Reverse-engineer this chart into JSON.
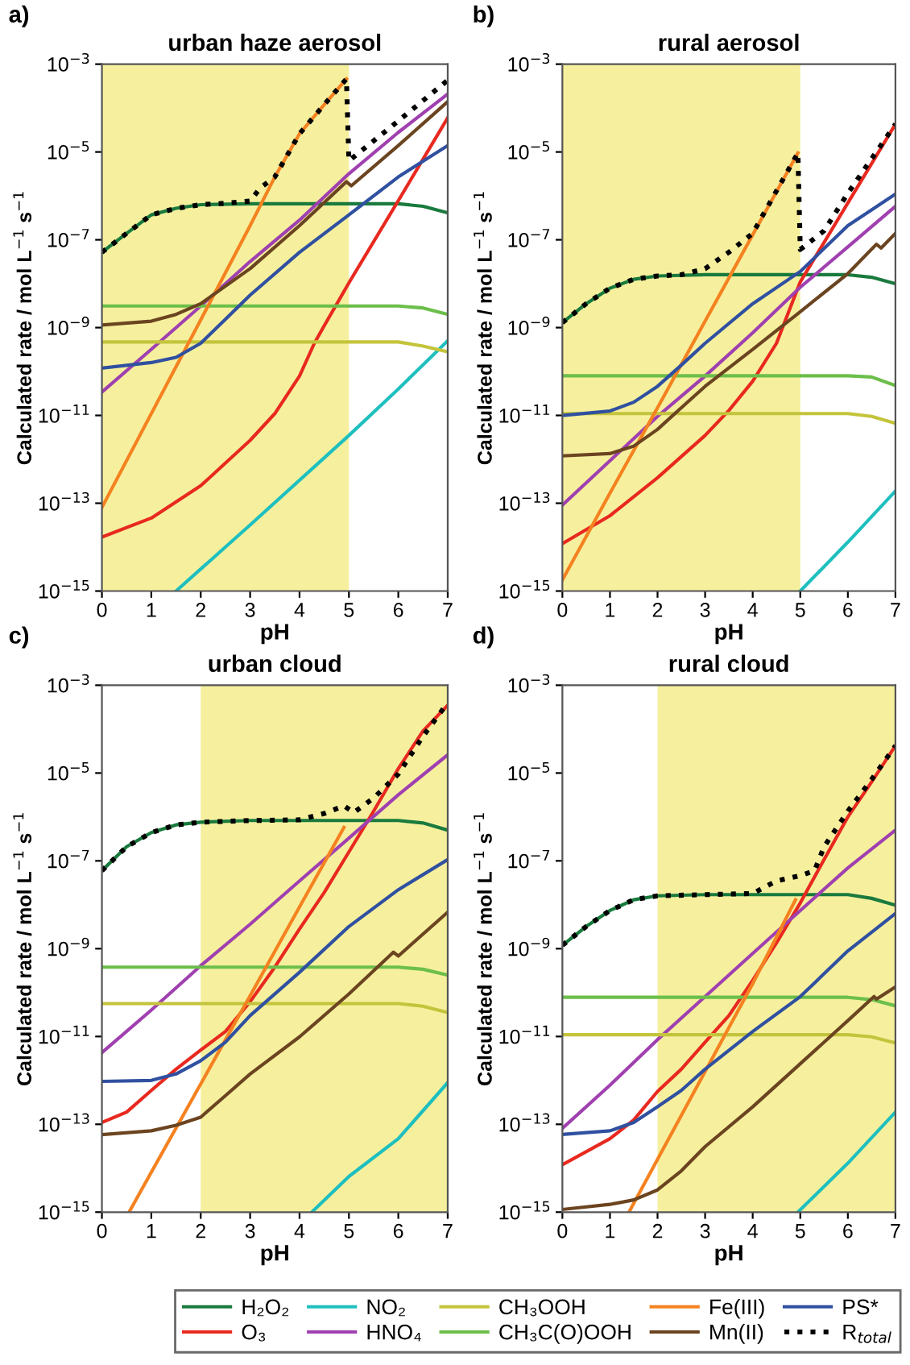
{
  "chart_data": [
    {
      "type": "line",
      "title": "urban haze aerosol",
      "xlabel": "pH",
      "ylabel": "Calculated rate / mol L$^{−1}$ s$^{−1}$",
      "annotations": [
        "a)"
      ],
      "log": "y",
      "legend": "bottom",
      "xlim": [
        0,
        7
      ],
      "xticks": [
        0,
        1,
        2,
        3,
        4,
        5,
        6,
        7
      ],
      "ylim": [
        1e-15,
        0.001
      ],
      "yticks": [
        {
          "value": 1e-15,
          "label": "10$^{−15}$"
        },
        {
          "value": 1e-13,
          "label": "10$^{−13}$"
        },
        {
          "value": 1e-11,
          "label": "10$^{−11}$"
        },
        {
          "value": 1e-09,
          "label": "10$^{−9}$"
        },
        {
          "value": 1e-07,
          "label": "10$^{−7}$"
        },
        {
          "value": 1e-05,
          "label": "10$^{−5}$"
        },
        {
          "value": 0.001,
          "label": "10$^{−3}$"
        }
      ],
      "bands": [
        {
          "axis": "x",
          "from": 0,
          "to": 5,
          "color": "#f6f09e"
        }
      ],
      "series": [
        {
          "name": "H₂O₂",
          "color": "#1a7a3e",
          "x": [
            0,
            0.5,
            1,
            1.5,
            2,
            3,
            4,
            5,
            6,
            6.5,
            7
          ],
          "values": [
            5.2e-08,
            1.4e-07,
            3.7e-07,
            5.2e-07,
            6.3e-07,
            6.6e-07,
            6.6e-07,
            6.6e-07,
            6.6e-07,
            5.8e-07,
            4.1e-07
          ]
        },
        {
          "name": "O₃",
          "color": "#e8291f",
          "x": [
            0,
            1,
            2,
            3,
            3.5,
            4,
            4.3,
            4.5,
            5,
            6,
            7
          ],
          "values": [
            1.7e-14,
            4.6e-14,
            2.5e-13,
            2.7e-12,
            1.1e-11,
            7.9e-11,
            4.4e-10,
            1.1e-09,
            1.05e-08,
            7.8e-07,
            6e-05
          ]
        },
        {
          "name": "NO₂",
          "color": "#1fbfbf",
          "x": [
            1.5,
            3,
            5,
            6,
            7
          ],
          "values": [
            1e-15,
            3.2e-14,
            3.5e-12,
            4e-11,
            5e-10
          ]
        },
        {
          "name": "HNO₄",
          "color": "#a040b0",
          "x": [
            0,
            1,
            2,
            3,
            4,
            5,
            6,
            7
          ],
          "values": [
            3.4e-11,
            3.2e-10,
            3.1e-09,
            3.2e-08,
            2.8e-07,
            3.2e-06,
            2.8e-05,
            0.00021
          ]
        },
        {
          "name": "CH₃OOH",
          "color": "#c4c43c",
          "x": [
            0,
            2,
            4,
            6,
            6.5,
            7
          ],
          "values": [
            4.7e-10,
            4.7e-10,
            4.7e-10,
            4.7e-10,
            3.8e-10,
            2.8e-10
          ]
        },
        {
          "name": "CH₃C(O)OOH",
          "color": "#6cbf4a",
          "x": [
            0,
            2,
            4,
            6,
            6.5,
            7
          ],
          "values": [
            3.1e-09,
            3.1e-09,
            3.1e-09,
            3.1e-09,
            2.8e-09,
            2e-09
          ]
        },
        {
          "name": "Fe(III)",
          "color": "#f58220",
          "x": [
            0,
            1,
            2,
            3,
            3.5,
            4,
            4.5,
            4.95
          ],
          "values": [
            8e-14,
            1.1e-11,
            1.5e-09,
            2.1e-07,
            2.7e-06,
            2.6e-05,
            0.00012,
            0.00046
          ]
        },
        {
          "name": "Mn(II)",
          "color": "#6b4420",
          "x": [
            0,
            1,
            1.5,
            2,
            3,
            4,
            4.95,
            5.05,
            6,
            7
          ],
          "values": [
            1.15e-09,
            1.4e-09,
            2e-09,
            3.5e-09,
            2.2e-08,
            2.1e-07,
            2.1e-06,
            1.7e-06,
            1.4e-05,
            0.00014
          ]
        },
        {
          "name": "PS*",
          "color": "#3050a0",
          "x": [
            0,
            1,
            1.5,
            2,
            2.5,
            3,
            4,
            5,
            6,
            7
          ],
          "values": [
            1.2e-10,
            1.6e-10,
            2.1e-10,
            4.4e-10,
            1.55e-09,
            5.5e-09,
            5.2e-08,
            3.7e-07,
            2.7e-06,
            1.4e-05
          ]
        },
        {
          "name": "R$_{total}$",
          "color": "#000000",
          "line_style": "dotted",
          "x": [
            0,
            0.5,
            1,
            1.5,
            2,
            2.5,
            3,
            3.2,
            3.5,
            4,
            4.5,
            4.95,
            5,
            6,
            7
          ],
          "values": [
            5.2e-08,
            1.4e-07,
            3.7e-07,
            5.2e-07,
            6.3e-07,
            6.8e-07,
            7.6e-07,
            1.5e-06,
            2.7e-06,
            2.6e-05,
            0.00012,
            0.00046,
            6.3e-06,
            5.1e-05,
            0.00043
          ]
        }
      ]
    },
    {
      "type": "line",
      "title": "rural aerosol",
      "xlabel": "pH",
      "ylabel": "Calculated rate / mol L$^{−1}$ s$^{−1}$",
      "annotations": [
        "b)"
      ],
      "log": "y",
      "xlim": [
        0,
        7
      ],
      "xticks": [
        0,
        1,
        2,
        3,
        4,
        5,
        6,
        7
      ],
      "ylim": [
        1e-15,
        0.001
      ],
      "yticks": [
        {
          "value": 1e-15,
          "label": "10$^{−15}$"
        },
        {
          "value": 1e-13,
          "label": "10$^{−13}$"
        },
        {
          "value": 1e-11,
          "label": "10$^{−11}$"
        },
        {
          "value": 1e-09,
          "label": "10$^{−9}$"
        },
        {
          "value": 1e-07,
          "label": "10$^{−7}$"
        },
        {
          "value": 1e-05,
          "label": "10$^{−5}$"
        },
        {
          "value": 0.001,
          "label": "10$^{−3}$"
        }
      ],
      "bands": [
        {
          "axis": "x",
          "from": 0,
          "to": 5,
          "color": "#f6f09e"
        }
      ],
      "series": [
        {
          "color": "#1a7a3e",
          "x": [
            0,
            0.5,
            1,
            1.5,
            2,
            3,
            4,
            5,
            6,
            6.5,
            7
          ],
          "values": [
            1.3e-09,
            3.5e-09,
            7.9e-09,
            1.26e-08,
            1.5e-08,
            1.6e-08,
            1.6e-08,
            1.6e-08,
            1.6e-08,
            1.4e-08,
            1e-08
          ]
        },
        {
          "color": "#e8291f",
          "x": [
            0,
            1,
            2,
            3,
            3.5,
            4,
            4.5,
            5,
            6,
            7
          ],
          "values": [
            1.2e-14,
            5.2e-14,
            3.8e-13,
            3.5e-12,
            1.3e-11,
            6e-11,
            4.4e-10,
            1.1e-08,
            6.9e-07,
            4.3e-05
          ]
        },
        {
          "color": "#1fbfbf",
          "x": [
            5,
            6,
            7
          ],
          "values": [
            1e-15,
            1.3e-14,
            1.9e-13
          ]
        },
        {
          "color": "#a040b0",
          "x": [
            0,
            1,
            2,
            3,
            4,
            5,
            6,
            7
          ],
          "values": [
            9.1e-14,
            9.3e-13,
            9.5e-12,
            7.9e-11,
            7.6e-10,
            8.3e-09,
            6.9e-08,
            5.8e-07
          ]
        },
        {
          "color": "#c4c43c",
          "x": [
            0,
            2,
            4,
            6,
            6.5,
            7
          ],
          "values": [
            1.1e-11,
            1.1e-11,
            1.1e-11,
            1.1e-11,
            9.5e-12,
            6.6e-12
          ]
        },
        {
          "color": "#6cbf4a",
          "x": [
            0,
            2,
            4,
            6,
            6.5,
            7
          ],
          "values": [
            8e-11,
            8e-11,
            8e-11,
            8e-11,
            7.5e-11,
            4.8e-11
          ]
        },
        {
          "color": "#f58220",
          "x": [
            0,
            1,
            2,
            3,
            4,
            4.95
          ],
          "values": [
            1.8e-15,
            1.7e-13,
            1.5e-11,
            1.4e-09,
            1.3e-07,
            9.5e-06
          ]
        },
        {
          "color": "#6b4420",
          "x": [
            0,
            1,
            1.5,
            2,
            2.5,
            3,
            4,
            5,
            6,
            6.6,
            6.7,
            7
          ],
          "values": [
            1.2e-12,
            1.35e-12,
            2e-12,
            4.8e-12,
            1.5e-11,
            4.6e-11,
            3.2e-10,
            2.3e-09,
            1.7e-08,
            7.9e-08,
            6.5e-08,
            1.4e-07
          ]
        },
        {
          "color": "#3050a0",
          "x": [
            0,
            1,
            1.5,
            2,
            2.5,
            3,
            4,
            5,
            6,
            7
          ],
          "values": [
            1e-11,
            1.26e-11,
            2e-11,
            4.6e-11,
            1.4e-10,
            4.4e-10,
            3.5e-09,
            1.9e-08,
            2.1e-07,
            1.1e-06
          ]
        },
        {
          "color": "#000000",
          "line_style": "dotted",
          "x": [
            0,
            0.5,
            1,
            1.5,
            2,
            2.5,
            3,
            3.5,
            4,
            4.5,
            4.95,
            5,
            5.5,
            6,
            7
          ],
          "values": [
            1.3e-09,
            3.5e-09,
            7.9e-09,
            1.26e-08,
            1.5e-08,
            1.6e-08,
            2.2e-08,
            5.2e-08,
            1.4e-07,
            1.3e-06,
            9.5e-06,
            6e-08,
            1.6e-07,
            1.15e-06,
            4.3e-05
          ]
        }
      ]
    },
    {
      "type": "line",
      "title": "urban cloud",
      "xlabel": "pH",
      "ylabel": "Calculated rate / mol L$^{−1}$ s$^{−1}$",
      "annotations": [
        "c)"
      ],
      "log": "y",
      "xlim": [
        0,
        7
      ],
      "xticks": [
        0,
        1,
        2,
        3,
        4,
        5,
        6,
        7
      ],
      "ylim": [
        1e-15,
        0.001
      ],
      "yticks": [
        {
          "value": 1e-15,
          "label": "10$^{−15}$"
        },
        {
          "value": 1e-13,
          "label": "10$^{−13}$"
        },
        {
          "value": 1e-11,
          "label": "10$^{−11}$"
        },
        {
          "value": 1e-09,
          "label": "10$^{−9}$"
        },
        {
          "value": 1e-07,
          "label": "10$^{−7}$"
        },
        {
          "value": 1e-05,
          "label": "10$^{−5}$"
        },
        {
          "value": 0.001,
          "label": "10$^{−3}$"
        }
      ],
      "bands": [
        {
          "axis": "x",
          "from": 2,
          "to": 7,
          "color": "#f6f09e"
        }
      ],
      "series": [
        {
          "color": "#1a7a3e",
          "x": [
            0,
            0.5,
            1,
            1.5,
            2,
            3,
            4,
            5,
            6,
            6.5,
            7
          ],
          "values": [
            6e-08,
            2.1e-07,
            4.4e-07,
            6.6e-07,
            7.6e-07,
            8.3e-07,
            8.3e-07,
            8.3e-07,
            8.3e-07,
            7.3e-07,
            5e-07
          ]
        },
        {
          "color": "#e8291f",
          "x": [
            0,
            0.5,
            1,
            1.5,
            2,
            2.5,
            3,
            3.5,
            4,
            4.5,
            5,
            5.5,
            6,
            6.5,
            7
          ],
          "values": [
            1.1e-13,
            1.9e-13,
            5.9e-13,
            1.8e-12,
            4.9e-12,
            1.3e-11,
            6.2e-11,
            3.8e-10,
            2.8e-09,
            1.9e-08,
            1.6e-07,
            1.35e-06,
            1.26e-05,
            9.1e-05,
            0.00035
          ]
        },
        {
          "color": "#1fbfbf",
          "x": [
            4.25,
            5,
            6,
            7
          ],
          "values": [
            1e-15,
            6.5e-15,
            4.7e-14,
            8.9e-13
          ]
        },
        {
          "color": "#a040b0",
          "x": [
            0,
            1,
            2,
            3,
            4,
            5,
            6,
            7
          ],
          "values": [
            4.3e-12,
            4e-11,
            4.1e-10,
            3.6e-09,
            3.5e-08,
            3.3e-07,
            3.2e-06,
            2.6e-05
          ]
        },
        {
          "color": "#c4c43c",
          "x": [
            0,
            2,
            4,
            6,
            6.5,
            7
          ],
          "values": [
            5.6e-11,
            5.6e-11,
            5.6e-11,
            5.6e-11,
            4.9e-11,
            3.5e-11
          ]
        },
        {
          "color": "#6cbf4a",
          "x": [
            0,
            2,
            4,
            6,
            6.5,
            7
          ],
          "values": [
            3.8e-10,
            3.8e-10,
            3.8e-10,
            3.8e-10,
            3.4e-10,
            2.5e-10
          ]
        },
        {
          "color": "#f58220",
          "x": [
            0.55,
            1,
            2,
            3,
            4,
            4.9
          ],
          "values": [
            1e-15,
            8.1e-15,
            8.3e-13,
            8.5e-11,
            8.9e-09,
            5.8e-07
          ]
        },
        {
          "color": "#6b4420",
          "x": [
            0,
            1,
            1.5,
            2,
            2.5,
            3,
            4,
            5,
            5.9,
            6,
            7
          ],
          "values": [
            5.8e-14,
            7.1e-14,
            9.5e-14,
            1.45e-13,
            4.5e-13,
            1.4e-12,
            9.8e-12,
            9.3e-11,
            8.3e-10,
            6.8e-10,
            6.8e-09
          ]
        },
        {
          "color": "#3050a0",
          "x": [
            0,
            1,
            1.5,
            2,
            2.5,
            3,
            4,
            5,
            6,
            7
          ],
          "values": [
            9.5e-13,
            1e-12,
            1.4e-12,
            2.8e-12,
            7.4e-12,
            3e-11,
            2.9e-10,
            3.2e-09,
            2.2e-08,
            1.07e-07
          ]
        },
        {
          "color": "#000000",
          "line_style": "dotted",
          "x": [
            0,
            0.5,
            1,
            1.5,
            2,
            3,
            4,
            4.5,
            4.9,
            5.1,
            5.5,
            6,
            6.5,
            7
          ],
          "values": [
            6e-08,
            2.1e-07,
            4.4e-07,
            6.6e-07,
            7.6e-07,
            8.3e-07,
            8.6e-07,
            1.2e-06,
            1.8e-06,
            1.26e-06,
            2.7e-06,
            9.5e-06,
            6.9e-05,
            0.0004
          ]
        }
      ]
    },
    {
      "type": "line",
      "title": "rural cloud",
      "xlabel": "pH",
      "ylabel": "Calculated rate / mol L$^{−1}$ s$^{−1}$",
      "annotations": [
        "d)"
      ],
      "log": "y",
      "xlim": [
        0,
        7
      ],
      "xticks": [
        0,
        1,
        2,
        3,
        4,
        5,
        6,
        7
      ],
      "ylim": [
        1e-15,
        0.001
      ],
      "yticks": [
        {
          "value": 1e-15,
          "label": "10$^{−15}$"
        },
        {
          "value": 1e-13,
          "label": "10$^{−13}$"
        },
        {
          "value": 1e-11,
          "label": "10$^{−11}$"
        },
        {
          "value": 1e-09,
          "label": "10$^{−9}$"
        },
        {
          "value": 1e-07,
          "label": "10$^{−7}$"
        },
        {
          "value": 1e-05,
          "label": "10$^{−5}$"
        },
        {
          "value": 0.001,
          "label": "10$^{−3}$"
        }
      ],
      "bands": [
        {
          "axis": "x",
          "from": 2,
          "to": 7,
          "color": "#f6f09e"
        }
      ],
      "series": [
        {
          "color": "#1a7a3e",
          "x": [
            0,
            0.5,
            1,
            1.5,
            2,
            3,
            4,
            5,
            6,
            6.5,
            7
          ],
          "values": [
            1.2e-09,
            3.2e-09,
            7.4e-09,
            1.3e-08,
            1.6e-08,
            1.7e-08,
            1.7e-08,
            1.7e-08,
            1.7e-08,
            1.4e-08,
            9.8e-09
          ]
        },
        {
          "color": "#e8291f",
          "x": [
            0,
            1,
            1.5,
            2,
            2.5,
            3,
            3.5,
            4,
            4.5,
            5,
            5.5,
            6,
            6.5,
            7
          ],
          "values": [
            1.2e-14,
            4.7e-14,
            1.26e-13,
            5.6e-13,
            1.8e-12,
            7.4e-12,
            3e-11,
            1.9e-10,
            1.35e-09,
            1.1e-08,
            1.07e-07,
            1e-06,
            6.3e-06,
            4.2e-05
          ]
        },
        {
          "color": "#1fbfbf",
          "x": [
            4.95,
            6,
            7
          ],
          "values": [
            1e-15,
            1.3e-14,
            1.9e-13
          ]
        },
        {
          "color": "#a040b0",
          "x": [
            0,
            1,
            2,
            3,
            4,
            5,
            6,
            7
          ],
          "values": [
            8.1e-14,
            7.8e-13,
            8.5e-12,
            8.1e-11,
            7.8e-10,
            7.4e-09,
            6.9e-08,
            5e-07
          ]
        },
        {
          "color": "#c4c43c",
          "x": [
            0,
            2,
            4,
            6,
            6.5,
            7
          ],
          "values": [
            1.1e-11,
            1.1e-11,
            1.1e-11,
            1.1e-11,
            9.8e-12,
            7.1e-12
          ]
        },
        {
          "color": "#6cbf4a",
          "x": [
            0,
            2,
            4,
            6,
            6.5,
            7
          ],
          "values": [
            7.8e-11,
            7.8e-11,
            7.8e-11,
            7.8e-11,
            6.9e-11,
            5e-11
          ]
        },
        {
          "color": "#f58220",
          "x": [
            1.4,
            2,
            3,
            4,
            4.9
          ],
          "values": [
            1e-15,
            1.6e-14,
            1.6e-12,
            1.6e-10,
            1.3e-08
          ]
        },
        {
          "color": "#6b4420",
          "x": [
            0,
            1,
            1.5,
            2,
            2.5,
            3,
            4,
            5,
            6,
            6.55,
            6.6,
            7
          ],
          "values": [
            1.15e-15,
            1.5e-15,
            1.9e-15,
            3.2e-15,
            8.7e-15,
            3.1e-14,
            2.5e-13,
            2.4e-12,
            2.3e-11,
            8.1e-11,
            7.1e-11,
            1.35e-10
          ]
        },
        {
          "color": "#3050a0",
          "x": [
            0,
            1,
            1.5,
            2,
            2.5,
            3,
            4,
            5,
            6,
            7
          ],
          "values": [
            5.9e-14,
            7.1e-14,
            1.1e-13,
            2.5e-13,
            5.9e-13,
            1.8e-12,
            1.3e-11,
            8.1e-11,
            8.9e-10,
            6.3e-09
          ]
        },
        {
          "color": "#000000",
          "line_style": "dotted",
          "x": [
            0,
            0.5,
            1,
            1.5,
            2,
            3,
            4,
            4.5,
            5,
            5.3,
            5.5,
            6,
            6.5,
            7
          ],
          "values": [
            1.2e-09,
            3.2e-09,
            7.4e-09,
            1.3e-08,
            1.6e-08,
            1.7e-08,
            1.8e-08,
            3.5e-08,
            4.6e-08,
            6e-08,
            2.1e-07,
            1.35e-06,
            7.2e-06,
            4.2e-05
          ]
        }
      ]
    }
  ]
}
